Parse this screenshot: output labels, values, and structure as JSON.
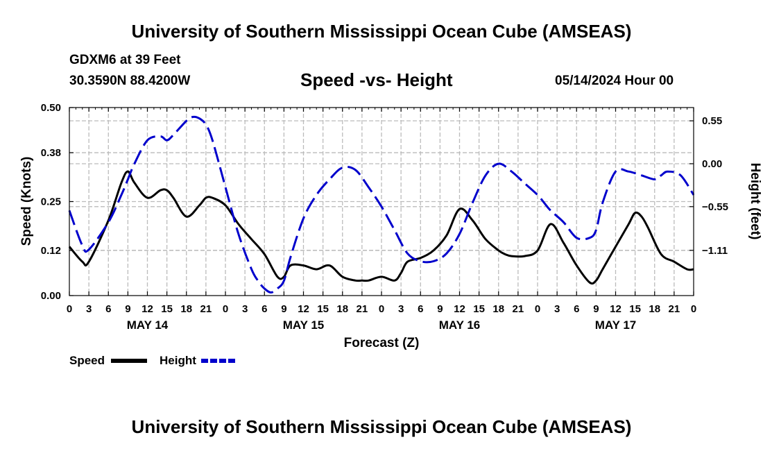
{
  "header": {
    "title": "University of Southern Mississippi Ocean Cube (AMSEAS)",
    "station": "GDXM6 at 39 Feet",
    "coords": "30.3590N  88.4200W",
    "subtitle": "Speed -vs- Height",
    "datetime": "05/14/2024 Hour 00"
  },
  "footer": {
    "title": "University of Southern Mississippi Ocean Cube (AMSEAS)"
  },
  "chart_data": {
    "type": "line",
    "title": "Speed -vs- Height",
    "xlabel": "Forecast (Z)",
    "ylabel": "Speed (Knots)",
    "y2label": "Height (feet)",
    "xlim": [
      0,
      96
    ],
    "ylim": [
      0.0,
      0.5
    ],
    "y2lim": [
      -1.69,
      0.72
    ],
    "grid": true,
    "x_ticks": [
      0,
      3,
      6,
      9,
      12,
      15,
      18,
      21,
      24,
      27,
      30,
      33,
      36,
      39,
      42,
      45,
      48,
      51,
      54,
      57,
      60,
      63,
      66,
      69,
      72,
      75,
      78,
      81,
      84,
      87,
      90,
      93,
      96
    ],
    "x_tick_labels": [
      "0",
      "3",
      "6",
      "9",
      "12",
      "15",
      "18",
      "21",
      "0",
      "3",
      "6",
      "9",
      "12",
      "15",
      "18",
      "21",
      "0",
      "3",
      "6",
      "9",
      "12",
      "15",
      "18",
      "21",
      "0",
      "3",
      "6",
      "9",
      "12",
      "15",
      "18",
      "21",
      "0"
    ],
    "date_labels": [
      {
        "x": 12,
        "label": "MAY 14"
      },
      {
        "x": 36,
        "label": "MAY 15"
      },
      {
        "x": 60,
        "label": "MAY 16"
      },
      {
        "x": 84,
        "label": "MAY 17"
      }
    ],
    "y_ticks": [
      0.0,
      0.12,
      0.25,
      0.38,
      0.5
    ],
    "y_tick_labels": [
      "0.00",
      "0.12",
      "0.25",
      "0.38",
      "0.50"
    ],
    "y2_ticks": [
      0.55,
      0.0,
      -0.55,
      -1.11
    ],
    "y2_tick_labels": [
      "0.55",
      "0.00",
      "−0.55",
      "−1.11"
    ],
    "legend": [
      {
        "name": "Speed",
        "color": "#000000",
        "dash": "solid"
      },
      {
        "name": "Height",
        "color": "#0000cc",
        "dash": "dashed"
      }
    ],
    "series": [
      {
        "name": "Speed",
        "axis": "left",
        "color": "#000000",
        "x": [
          0,
          2,
          3,
          6,
          8,
          9,
          10,
          12,
          14,
          15,
          16,
          18,
          20,
          21,
          22,
          24,
          26,
          28,
          30,
          32,
          33,
          34,
          36,
          38,
          40,
          42,
          44,
          45,
          46,
          48,
          50,
          51,
          52,
          54,
          56,
          58,
          60,
          62,
          64,
          66,
          67,
          68,
          70,
          72,
          74,
          76,
          78,
          80,
          81,
          82,
          84,
          86,
          87,
          88,
          89,
          91,
          93,
          95,
          96
        ],
        "y": [
          0.13,
          0.09,
          0.09,
          0.2,
          0.3,
          0.33,
          0.3,
          0.26,
          0.28,
          0.28,
          0.26,
          0.21,
          0.24,
          0.26,
          0.26,
          0.24,
          0.19,
          0.15,
          0.11,
          0.05,
          0.05,
          0.08,
          0.08,
          0.07,
          0.08,
          0.05,
          0.04,
          0.04,
          0.04,
          0.05,
          0.04,
          0.06,
          0.09,
          0.1,
          0.12,
          0.16,
          0.23,
          0.2,
          0.15,
          0.12,
          0.11,
          0.105,
          0.105,
          0.12,
          0.19,
          0.14,
          0.08,
          0.035,
          0.04,
          0.07,
          0.13,
          0.19,
          0.22,
          0.21,
          0.18,
          0.11,
          0.09,
          0.07,
          0.07
        ]
      },
      {
        "name": "Height",
        "axis": "right",
        "color": "#0000cc",
        "x": [
          0,
          2,
          3,
          6,
          8,
          9,
          10,
          12,
          14,
          15,
          16,
          18,
          19,
          20,
          21,
          22,
          24,
          26,
          28,
          29,
          30,
          31,
          32,
          33,
          34,
          36,
          38,
          40,
          42,
          44,
          46,
          48,
          50,
          52,
          54,
          56,
          58,
          60,
          62,
          64,
          66,
          68,
          70,
          72,
          73,
          74,
          76,
          78,
          80,
          81,
          82,
          84,
          86,
          88,
          90,
          91,
          92,
          94,
          96
        ],
        "y": [
          -0.6,
          -1.05,
          -1.1,
          -0.75,
          -0.4,
          -0.2,
          0.0,
          0.3,
          0.35,
          0.3,
          0.37,
          0.55,
          0.6,
          0.58,
          0.5,
          0.3,
          -0.3,
          -0.9,
          -1.35,
          -1.5,
          -1.6,
          -1.65,
          -1.6,
          -1.5,
          -1.2,
          -0.7,
          -0.4,
          -0.2,
          -0.05,
          -0.08,
          -0.3,
          -0.55,
          -0.85,
          -1.15,
          -1.25,
          -1.25,
          -1.15,
          -0.9,
          -0.5,
          -0.15,
          0.0,
          -0.1,
          -0.25,
          -0.4,
          -0.5,
          -0.6,
          -0.75,
          -0.95,
          -0.95,
          -0.85,
          -0.5,
          -0.1,
          -0.1,
          -0.15,
          -0.2,
          -0.15,
          -0.1,
          -0.15,
          -0.4
        ]
      }
    ]
  }
}
